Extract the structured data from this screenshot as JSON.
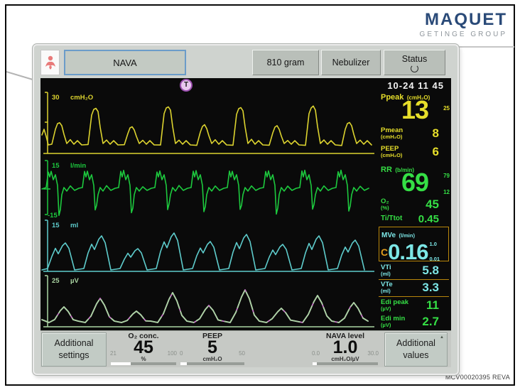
{
  "branding": {
    "logo": "MAQUET",
    "logo_sub": "GETINGE GROUP",
    "doc_code": "MCV00020395 REVA"
  },
  "icons": {
    "trend": "T",
    "chevron_up": "▲"
  },
  "toolbar": {
    "mode": "NAVA",
    "weight": "810 gram",
    "nebulizer": "Nebulizer",
    "status": "Status"
  },
  "screen": {
    "datetime": "10-24  11 45",
    "background": "#0a0a0a"
  },
  "waveforms": [
    {
      "name": "pressure",
      "scale": "30",
      "unit": "cmH₂O",
      "color": "#dcd32f"
    },
    {
      "name": "flow",
      "scale": "15",
      "unit": "l/min",
      "scale_min": "-15",
      "color": "#1dc93e"
    },
    {
      "name": "volume",
      "scale": "15",
      "unit": "ml",
      "color": "#5ecccc"
    },
    {
      "name": "edi",
      "scale": "25",
      "unit": "µV",
      "color": "#abd6a3",
      "accent": "#c977c9"
    }
  ],
  "measured": {
    "ppeak": {
      "label": "Ppeak",
      "unit": "(cmH₂O)",
      "value": "13",
      "scale_hi": "25"
    },
    "pmean": {
      "label": "Pmean",
      "unit": "(cmH₂O)",
      "value": "8"
    },
    "peep": {
      "label": "PEEP",
      "unit": "(cmH₂O)",
      "value": "6"
    },
    "rr": {
      "label": "RR",
      "unit": "(b/min)",
      "value": "69",
      "scale_hi": "79",
      "scale_lo": "12"
    },
    "o2": {
      "label": "O₂",
      "unit": "(%)",
      "value": "45"
    },
    "ti_ttot": {
      "label": "Ti/Ttot",
      "unit": "",
      "value": "0.45"
    },
    "mve": {
      "label": "MVe",
      "unit": "(l/min)",
      "prefix": "C",
      "value": "0.16",
      "scale_hi": "1.0",
      "scale_lo": "0.01"
    },
    "vti": {
      "label": "VTi",
      "unit": "(ml)",
      "value": "5.8"
    },
    "vte": {
      "label": "VTe",
      "unit": "(ml)",
      "value": "3.3"
    },
    "edi_peak": {
      "label": "Edi peak",
      "unit": "(µV)",
      "value": "11"
    },
    "edi_min": {
      "label": "Edi min",
      "unit": "(µV)",
      "value": "2.7"
    }
  },
  "settings_bar": {
    "additional_settings": {
      "line1": "Additional",
      "line2": "settings"
    },
    "o2": {
      "label": "O₂ conc.",
      "value": "45",
      "unit": "%",
      "min": "21",
      "max": "100",
      "fill_pct": 30
    },
    "peep": {
      "label": "PEEP",
      "value": "5",
      "unit": "cmH₂O",
      "min": "0",
      "max": "50",
      "fill_pct": 10
    },
    "nava": {
      "label": "NAVA level",
      "value": "1.0",
      "unit": "cmH₂O/µV",
      "min": "0.0",
      "max": "30.0",
      "fill_pct": 7
    },
    "additional_values": {
      "line1": "Additional",
      "line2": "values"
    }
  }
}
